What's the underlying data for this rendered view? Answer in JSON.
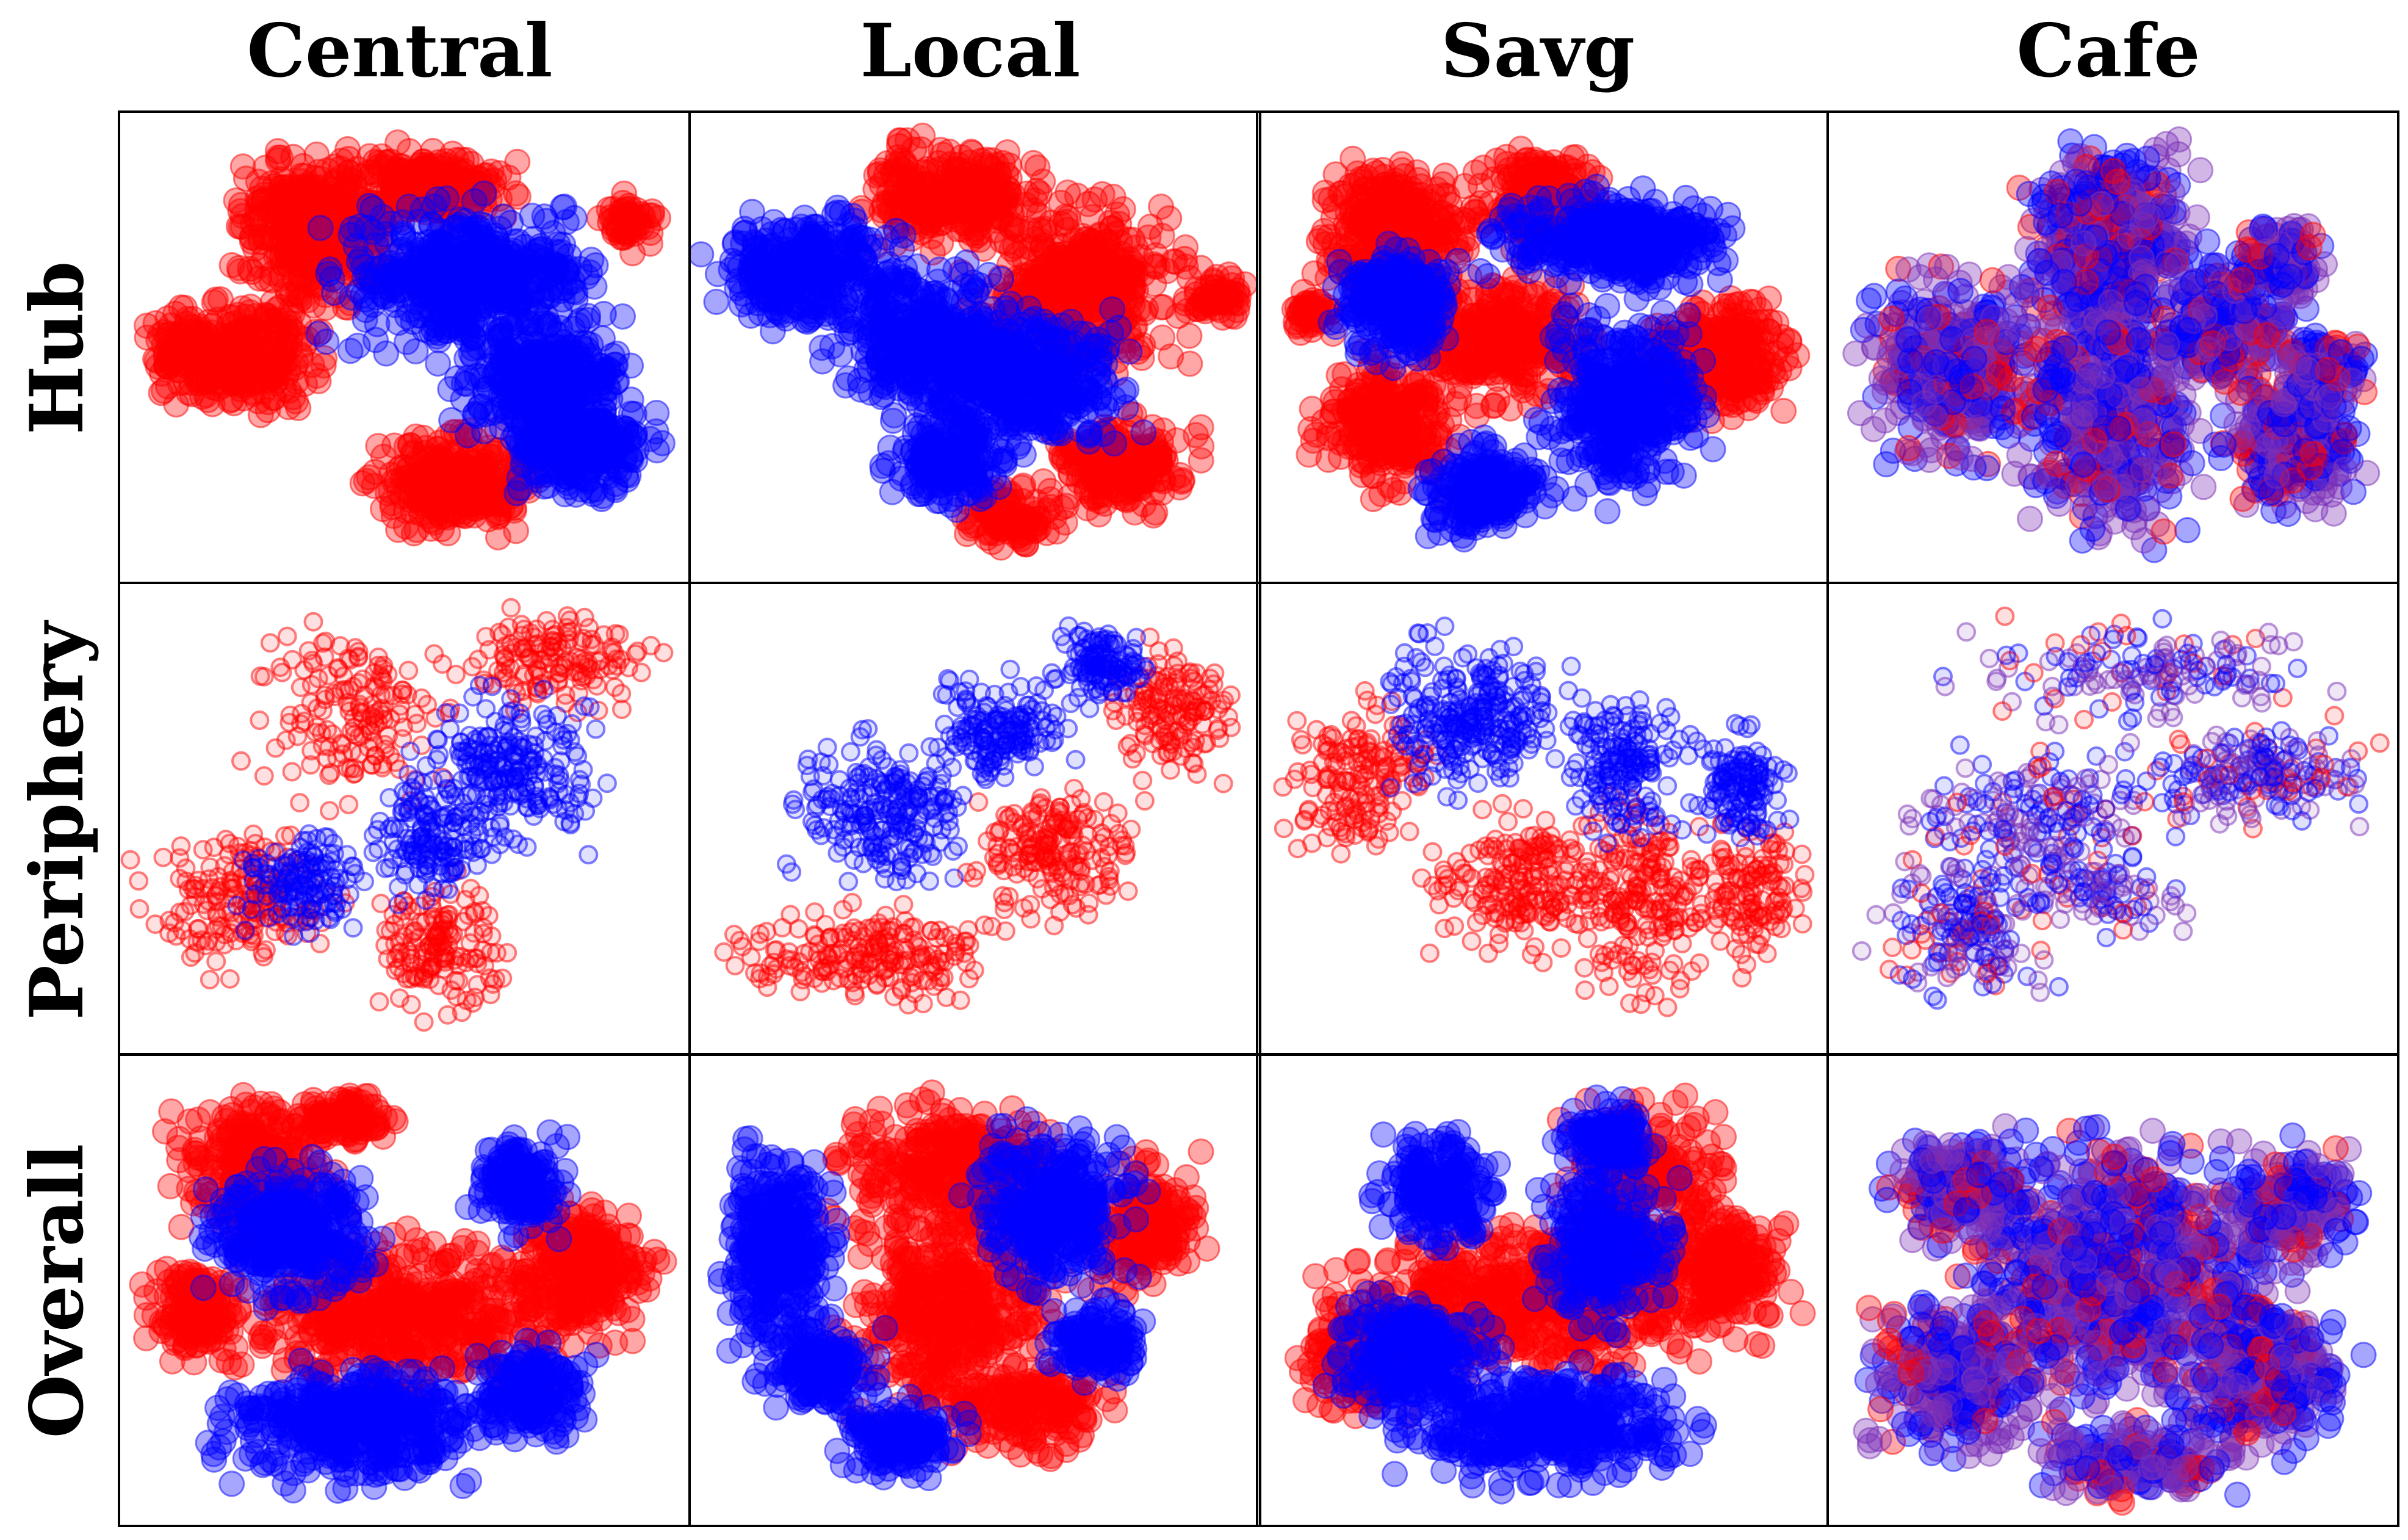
{
  "chart_data": {
    "type": "scatter",
    "title": "",
    "grid": false,
    "legend": "none",
    "columns": [
      "Central",
      "Local",
      "Savg",
      "Cafe"
    ],
    "rows": [
      "Hub",
      "Periphery",
      "Overall"
    ],
    "series_colors": {
      "class_a": "#ff0000",
      "class_b": "#0000ff",
      "overlap": "#7a2fb8"
    },
    "point_opacity": 0.35,
    "xlim": [
      0,
      1
    ],
    "ylim": [
      0,
      1
    ],
    "panels": [
      {
        "row": "Hub",
        "col": "Central",
        "density": "dense",
        "clusters": [
          {
            "c": "red",
            "x": 0.33,
            "y": 0.22,
            "rx": 0.14,
            "ry": 0.16,
            "n": 420
          },
          {
            "c": "red",
            "x": 0.55,
            "y": 0.12,
            "rx": 0.14,
            "ry": 0.07,
            "n": 250
          },
          {
            "c": "red",
            "x": 0.18,
            "y": 0.52,
            "rx": 0.14,
            "ry": 0.12,
            "n": 300
          },
          {
            "c": "red",
            "x": 0.6,
            "y": 0.82,
            "rx": 0.14,
            "ry": 0.1,
            "n": 330
          },
          {
            "c": "red",
            "x": 0.93,
            "y": 0.2,
            "rx": 0.05,
            "ry": 0.06,
            "n": 60
          },
          {
            "c": "red",
            "x": 0.08,
            "y": 0.5,
            "rx": 0.06,
            "ry": 0.05,
            "n": 60
          },
          {
            "c": "blue",
            "x": 0.62,
            "y": 0.34,
            "rx": 0.22,
            "ry": 0.16,
            "n": 520
          },
          {
            "c": "blue",
            "x": 0.76,
            "y": 0.58,
            "rx": 0.14,
            "ry": 0.12,
            "n": 330
          },
          {
            "c": "blue",
            "x": 0.84,
            "y": 0.74,
            "rx": 0.12,
            "ry": 0.1,
            "n": 260
          }
        ]
      },
      {
        "row": "Hub",
        "col": "Local",
        "density": "dense",
        "clusters": [
          {
            "c": "red",
            "x": 0.45,
            "y": 0.14,
            "rx": 0.14,
            "ry": 0.11,
            "n": 280
          },
          {
            "c": "red",
            "x": 0.7,
            "y": 0.35,
            "rx": 0.18,
            "ry": 0.18,
            "n": 420
          },
          {
            "c": "red",
            "x": 0.78,
            "y": 0.78,
            "rx": 0.12,
            "ry": 0.1,
            "n": 220
          },
          {
            "c": "red",
            "x": 0.96,
            "y": 0.38,
            "rx": 0.05,
            "ry": 0.05,
            "n": 60
          },
          {
            "c": "red",
            "x": 0.57,
            "y": 0.9,
            "rx": 0.08,
            "ry": 0.06,
            "n": 100
          },
          {
            "c": "blue",
            "x": 0.18,
            "y": 0.32,
            "rx": 0.16,
            "ry": 0.12,
            "n": 320
          },
          {
            "c": "blue",
            "x": 0.4,
            "y": 0.48,
            "rx": 0.16,
            "ry": 0.14,
            "n": 360
          },
          {
            "c": "blue",
            "x": 0.6,
            "y": 0.58,
            "rx": 0.18,
            "ry": 0.14,
            "n": 420
          },
          {
            "c": "blue",
            "x": 0.45,
            "y": 0.76,
            "rx": 0.1,
            "ry": 0.1,
            "n": 200
          }
        ]
      },
      {
        "row": "Hub",
        "col": "Savg",
        "density": "dense",
        "clusters": [
          {
            "c": "red",
            "x": 0.22,
            "y": 0.22,
            "rx": 0.14,
            "ry": 0.14,
            "n": 320
          },
          {
            "c": "red",
            "x": 0.5,
            "y": 0.15,
            "rx": 0.1,
            "ry": 0.1,
            "n": 200
          },
          {
            "c": "red",
            "x": 0.42,
            "y": 0.48,
            "rx": 0.14,
            "ry": 0.14,
            "n": 300
          },
          {
            "c": "red",
            "x": 0.2,
            "y": 0.68,
            "rx": 0.12,
            "ry": 0.14,
            "n": 280
          },
          {
            "c": "red",
            "x": 0.84,
            "y": 0.52,
            "rx": 0.12,
            "ry": 0.12,
            "n": 260
          },
          {
            "c": "red",
            "x": 0.06,
            "y": 0.42,
            "rx": 0.04,
            "ry": 0.04,
            "n": 50
          },
          {
            "c": "blue",
            "x": 0.22,
            "y": 0.4,
            "rx": 0.1,
            "ry": 0.12,
            "n": 240
          },
          {
            "c": "blue",
            "x": 0.64,
            "y": 0.24,
            "rx": 0.2,
            "ry": 0.1,
            "n": 360
          },
          {
            "c": "blue",
            "x": 0.66,
            "y": 0.64,
            "rx": 0.14,
            "ry": 0.2,
            "n": 380
          },
          {
            "c": "blue",
            "x": 0.38,
            "y": 0.84,
            "rx": 0.1,
            "ry": 0.1,
            "n": 200
          }
        ]
      },
      {
        "row": "Hub",
        "col": "Cafe",
        "density": "dense",
        "clusters": [
          {
            "c": "mix",
            "x": 0.5,
            "y": 0.25,
            "rx": 0.14,
            "ry": 0.2,
            "n": 520
          },
          {
            "c": "mix",
            "x": 0.2,
            "y": 0.55,
            "rx": 0.15,
            "ry": 0.2,
            "n": 420
          },
          {
            "c": "mix",
            "x": 0.5,
            "y": 0.65,
            "rx": 0.14,
            "ry": 0.26,
            "n": 480
          },
          {
            "c": "mix",
            "x": 0.72,
            "y": 0.45,
            "rx": 0.12,
            "ry": 0.12,
            "n": 260
          },
          {
            "c": "mix",
            "x": 0.84,
            "y": 0.72,
            "rx": 0.12,
            "ry": 0.14,
            "n": 300
          },
          {
            "c": "mix",
            "x": 0.82,
            "y": 0.3,
            "rx": 0.08,
            "ry": 0.08,
            "n": 140
          },
          {
            "c": "mix",
            "x": 0.9,
            "y": 0.55,
            "rx": 0.07,
            "ry": 0.08,
            "n": 120
          }
        ]
      },
      {
        "row": "Periphery",
        "col": "Central",
        "density": "sparse",
        "clusters": [
          {
            "c": "red",
            "x": 0.8,
            "y": 0.12,
            "rx": 0.16,
            "ry": 0.1,
            "n": 140
          },
          {
            "c": "red",
            "x": 0.4,
            "y": 0.25,
            "rx": 0.18,
            "ry": 0.18,
            "n": 160
          },
          {
            "c": "red",
            "x": 0.18,
            "y": 0.7,
            "rx": 0.16,
            "ry": 0.16,
            "n": 180
          },
          {
            "c": "red",
            "x": 0.57,
            "y": 0.8,
            "rx": 0.1,
            "ry": 0.14,
            "n": 150
          },
          {
            "c": "blue",
            "x": 0.7,
            "y": 0.38,
            "rx": 0.16,
            "ry": 0.16,
            "n": 220
          },
          {
            "c": "blue",
            "x": 0.55,
            "y": 0.55,
            "rx": 0.12,
            "ry": 0.12,
            "n": 150
          },
          {
            "c": "blue",
            "x": 0.3,
            "y": 0.65,
            "rx": 0.1,
            "ry": 0.1,
            "n": 130
          }
        ]
      },
      {
        "row": "Periphery",
        "col": "Local",
        "density": "sparse",
        "clusters": [
          {
            "c": "red",
            "x": 0.88,
            "y": 0.25,
            "rx": 0.1,
            "ry": 0.14,
            "n": 140
          },
          {
            "c": "red",
            "x": 0.66,
            "y": 0.58,
            "rx": 0.14,
            "ry": 0.14,
            "n": 180
          },
          {
            "c": "red",
            "x": 0.3,
            "y": 0.82,
            "rx": 0.24,
            "ry": 0.1,
            "n": 200
          },
          {
            "c": "blue",
            "x": 0.32,
            "y": 0.48,
            "rx": 0.14,
            "ry": 0.16,
            "n": 220
          },
          {
            "c": "blue",
            "x": 0.55,
            "y": 0.3,
            "rx": 0.12,
            "ry": 0.12,
            "n": 160
          },
          {
            "c": "blue",
            "x": 0.74,
            "y": 0.14,
            "rx": 0.08,
            "ry": 0.08,
            "n": 120
          }
        ]
      },
      {
        "row": "Periphery",
        "col": "Savg",
        "density": "sparse",
        "clusters": [
          {
            "c": "red",
            "x": 0.15,
            "y": 0.4,
            "rx": 0.12,
            "ry": 0.16,
            "n": 160
          },
          {
            "c": "red",
            "x": 0.45,
            "y": 0.65,
            "rx": 0.16,
            "ry": 0.16,
            "n": 200
          },
          {
            "c": "red",
            "x": 0.7,
            "y": 0.7,
            "rx": 0.12,
            "ry": 0.22,
            "n": 200
          },
          {
            "c": "red",
            "x": 0.9,
            "y": 0.68,
            "rx": 0.08,
            "ry": 0.16,
            "n": 120
          },
          {
            "c": "blue",
            "x": 0.37,
            "y": 0.25,
            "rx": 0.16,
            "ry": 0.16,
            "n": 260
          },
          {
            "c": "blue",
            "x": 0.65,
            "y": 0.38,
            "rx": 0.1,
            "ry": 0.14,
            "n": 160
          },
          {
            "c": "blue",
            "x": 0.88,
            "y": 0.42,
            "rx": 0.08,
            "ry": 0.12,
            "n": 130
          }
        ]
      },
      {
        "row": "Periphery",
        "col": "Cafe",
        "density": "sparse",
        "clusters": [
          {
            "c": "mix",
            "x": 0.55,
            "y": 0.15,
            "rx": 0.3,
            "ry": 0.1,
            "n": 160
          },
          {
            "c": "mix",
            "x": 0.35,
            "y": 0.5,
            "rx": 0.22,
            "ry": 0.14,
            "n": 200
          },
          {
            "c": "mix",
            "x": 0.78,
            "y": 0.4,
            "rx": 0.2,
            "ry": 0.1,
            "n": 200
          },
          {
            "c": "mix",
            "x": 0.22,
            "y": 0.76,
            "rx": 0.14,
            "ry": 0.14,
            "n": 180
          },
          {
            "c": "mix",
            "x": 0.48,
            "y": 0.68,
            "rx": 0.14,
            "ry": 0.1,
            "n": 80
          }
        ]
      },
      {
        "row": "Overall",
        "col": "Central",
        "density": "dense",
        "clusters": [
          {
            "c": "red",
            "x": 0.22,
            "y": 0.2,
            "rx": 0.14,
            "ry": 0.14,
            "n": 260
          },
          {
            "c": "red",
            "x": 0.5,
            "y": 0.55,
            "rx": 0.3,
            "ry": 0.16,
            "n": 520
          },
          {
            "c": "red",
            "x": 0.85,
            "y": 0.45,
            "rx": 0.12,
            "ry": 0.14,
            "n": 240
          },
          {
            "c": "red",
            "x": 0.1,
            "y": 0.55,
            "rx": 0.08,
            "ry": 0.1,
            "n": 150
          },
          {
            "c": "red",
            "x": 0.38,
            "y": 0.1,
            "rx": 0.08,
            "ry": 0.06,
            "n": 100
          },
          {
            "c": "blue",
            "x": 0.28,
            "y": 0.36,
            "rx": 0.14,
            "ry": 0.14,
            "n": 340
          },
          {
            "c": "blue",
            "x": 0.72,
            "y": 0.25,
            "rx": 0.08,
            "ry": 0.1,
            "n": 160
          },
          {
            "c": "blue",
            "x": 0.4,
            "y": 0.82,
            "rx": 0.22,
            "ry": 0.12,
            "n": 420
          },
          {
            "c": "blue",
            "x": 0.75,
            "y": 0.74,
            "rx": 0.1,
            "ry": 0.1,
            "n": 180
          }
        ]
      },
      {
        "row": "Overall",
        "col": "Local",
        "density": "dense",
        "clusters": [
          {
            "c": "red",
            "x": 0.45,
            "y": 0.2,
            "rx": 0.18,
            "ry": 0.14,
            "n": 300
          },
          {
            "c": "red",
            "x": 0.45,
            "y": 0.55,
            "rx": 0.18,
            "ry": 0.24,
            "n": 420
          },
          {
            "c": "red",
            "x": 0.82,
            "y": 0.35,
            "rx": 0.1,
            "ry": 0.14,
            "n": 180
          },
          {
            "c": "red",
            "x": 0.6,
            "y": 0.78,
            "rx": 0.14,
            "ry": 0.1,
            "n": 180
          },
          {
            "c": "blue",
            "x": 0.12,
            "y": 0.4,
            "rx": 0.09,
            "ry": 0.22,
            "n": 320
          },
          {
            "c": "blue",
            "x": 0.65,
            "y": 0.3,
            "rx": 0.14,
            "ry": 0.16,
            "n": 320
          },
          {
            "c": "blue",
            "x": 0.2,
            "y": 0.68,
            "rx": 0.1,
            "ry": 0.1,
            "n": 160
          },
          {
            "c": "blue",
            "x": 0.36,
            "y": 0.85,
            "rx": 0.1,
            "ry": 0.08,
            "n": 160
          },
          {
            "c": "blue",
            "x": 0.73,
            "y": 0.62,
            "rx": 0.08,
            "ry": 0.08,
            "n": 130
          }
        ]
      },
      {
        "row": "Overall",
        "col": "Savg",
        "density": "dense",
        "clusters": [
          {
            "c": "red",
            "x": 0.5,
            "y": 0.52,
            "rx": 0.34,
            "ry": 0.16,
            "n": 560
          },
          {
            "c": "red",
            "x": 0.7,
            "y": 0.22,
            "rx": 0.14,
            "ry": 0.14,
            "n": 200
          },
          {
            "c": "red",
            "x": 0.85,
            "y": 0.45,
            "rx": 0.12,
            "ry": 0.12,
            "n": 200
          },
          {
            "c": "red",
            "x": 0.15,
            "y": 0.65,
            "rx": 0.1,
            "ry": 0.14,
            "n": 160
          },
          {
            "c": "blue",
            "x": 0.3,
            "y": 0.25,
            "rx": 0.1,
            "ry": 0.12,
            "n": 200
          },
          {
            "c": "blue",
            "x": 0.62,
            "y": 0.4,
            "rx": 0.12,
            "ry": 0.16,
            "n": 240
          },
          {
            "c": "blue",
            "x": 0.25,
            "y": 0.65,
            "rx": 0.14,
            "ry": 0.12,
            "n": 240
          },
          {
            "c": "blue",
            "x": 0.5,
            "y": 0.82,
            "rx": 0.24,
            "ry": 0.12,
            "n": 420
          },
          {
            "c": "blue",
            "x": 0.62,
            "y": 0.14,
            "rx": 0.08,
            "ry": 0.08,
            "n": 120
          }
        ]
      },
      {
        "row": "Overall",
        "col": "Cafe",
        "density": "dense",
        "clusters": [
          {
            "c": "mix",
            "x": 0.52,
            "y": 0.45,
            "rx": 0.28,
            "ry": 0.28,
            "n": 900
          },
          {
            "c": "mix",
            "x": 0.2,
            "y": 0.25,
            "rx": 0.12,
            "ry": 0.12,
            "n": 200
          },
          {
            "c": "mix",
            "x": 0.2,
            "y": 0.7,
            "rx": 0.16,
            "ry": 0.16,
            "n": 300
          },
          {
            "c": "mix",
            "x": 0.8,
            "y": 0.7,
            "rx": 0.14,
            "ry": 0.16,
            "n": 300
          },
          {
            "c": "mix",
            "x": 0.85,
            "y": 0.3,
            "rx": 0.1,
            "ry": 0.12,
            "n": 180
          },
          {
            "c": "mix",
            "x": 0.55,
            "y": 0.9,
            "rx": 0.16,
            "ry": 0.08,
            "n": 200
          }
        ]
      }
    ]
  }
}
